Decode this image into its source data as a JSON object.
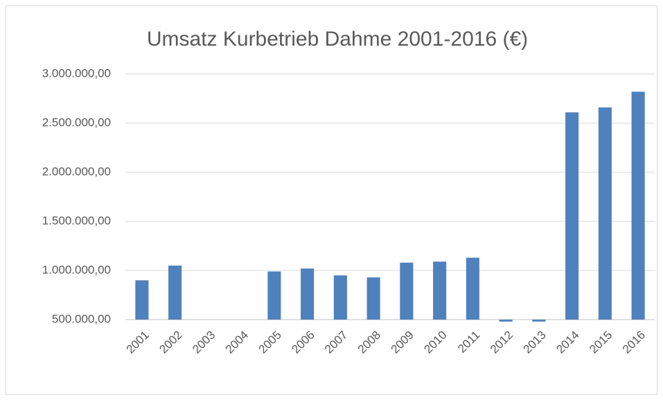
{
  "chart_data": {
    "type": "bar",
    "title": "Umsatz Kurbetrieb Dahme 2001-2016 (€)",
    "categories": [
      "2001",
      "2002",
      "2003",
      "2004",
      "2005",
      "2006",
      "2007",
      "2008",
      "2009",
      "2010",
      "2011",
      "2012",
      "2013",
      "2014",
      "2015",
      "2016"
    ],
    "values": [
      900000,
      1050000,
      null,
      null,
      990000,
      1020000,
      950000,
      930000,
      1080000,
      1090000,
      1130000,
      480000,
      480000,
      2610000,
      2660000,
      2820000
    ],
    "color": "#4f81bd",
    "ylim": [
      500000,
      3000000
    ],
    "yticks": [
      {
        "value": 500000,
        "label": "500.000,00"
      },
      {
        "value": 1000000,
        "label": "1.000.000,00"
      },
      {
        "value": 1500000,
        "label": "1.500.000,00"
      },
      {
        "value": 2000000,
        "label": "2.000.000,00"
      },
      {
        "value": 2500000,
        "label": "2.500.000,00"
      },
      {
        "value": 3000000,
        "label": "3.000.000,00"
      }
    ],
    "grid": true
  }
}
